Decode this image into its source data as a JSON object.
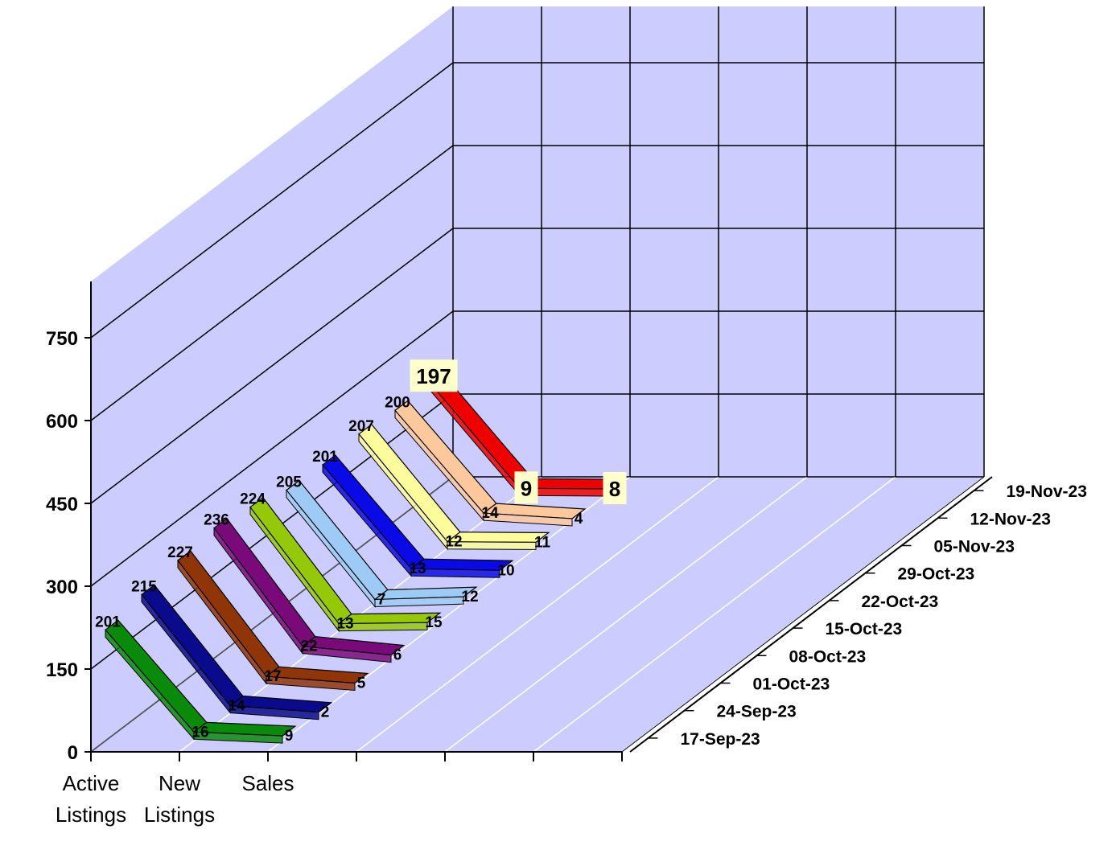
{
  "chart_data": {
    "type": "line",
    "view": "3d",
    "categories": [
      "Active Listings",
      "New Listings",
      "Sales"
    ],
    "category_lines": [
      [
        "Active",
        "Listings"
      ],
      [
        "New",
        "Listings"
      ],
      [
        "Sales"
      ]
    ],
    "y_ticks": [
      "0",
      "150",
      "300",
      "450",
      "600",
      "750"
    ],
    "ylim": [
      0,
      750
    ],
    "grid": true,
    "series": [
      {
        "name": "17-Sep-23",
        "values": [
          201,
          16,
          9
        ],
        "color": "#0a8a0a"
      },
      {
        "name": "24-Sep-23",
        "values": [
          215,
          14,
          2
        ],
        "color": "#0a0a8c"
      },
      {
        "name": "01-Oct-23",
        "values": [
          227,
          17,
          5
        ],
        "color": "#8f3508"
      },
      {
        "name": "08-Oct-23",
        "values": [
          236,
          22,
          6
        ],
        "color": "#7a0a7a"
      },
      {
        "name": "15-Oct-23",
        "values": [
          224,
          13,
          15
        ],
        "color": "#96c80a"
      },
      {
        "name": "22-Oct-23",
        "values": [
          205,
          7,
          12
        ],
        "color": "#9ecbf5"
      },
      {
        "name": "29-Oct-23",
        "values": [
          201,
          13,
          10
        ],
        "color": "#0a0ae6"
      },
      {
        "name": "05-Nov-23",
        "values": [
          207,
          12,
          11
        ],
        "color": "#fcfc9c"
      },
      {
        "name": "12-Nov-23",
        "values": [
          200,
          14,
          4
        ],
        "color": "#fcc89c"
      },
      {
        "name": "19-Nov-23",
        "values": [
          197,
          9,
          8
        ],
        "color": "#ee0000"
      }
    ],
    "highlight_series": "19-Nov-23",
    "colors": {
      "wall": "#ccccff",
      "floor": "#ccccff",
      "back_grid": "#000000",
      "floor_grid": "#ffffff",
      "label_box": "#ffffcc"
    }
  }
}
